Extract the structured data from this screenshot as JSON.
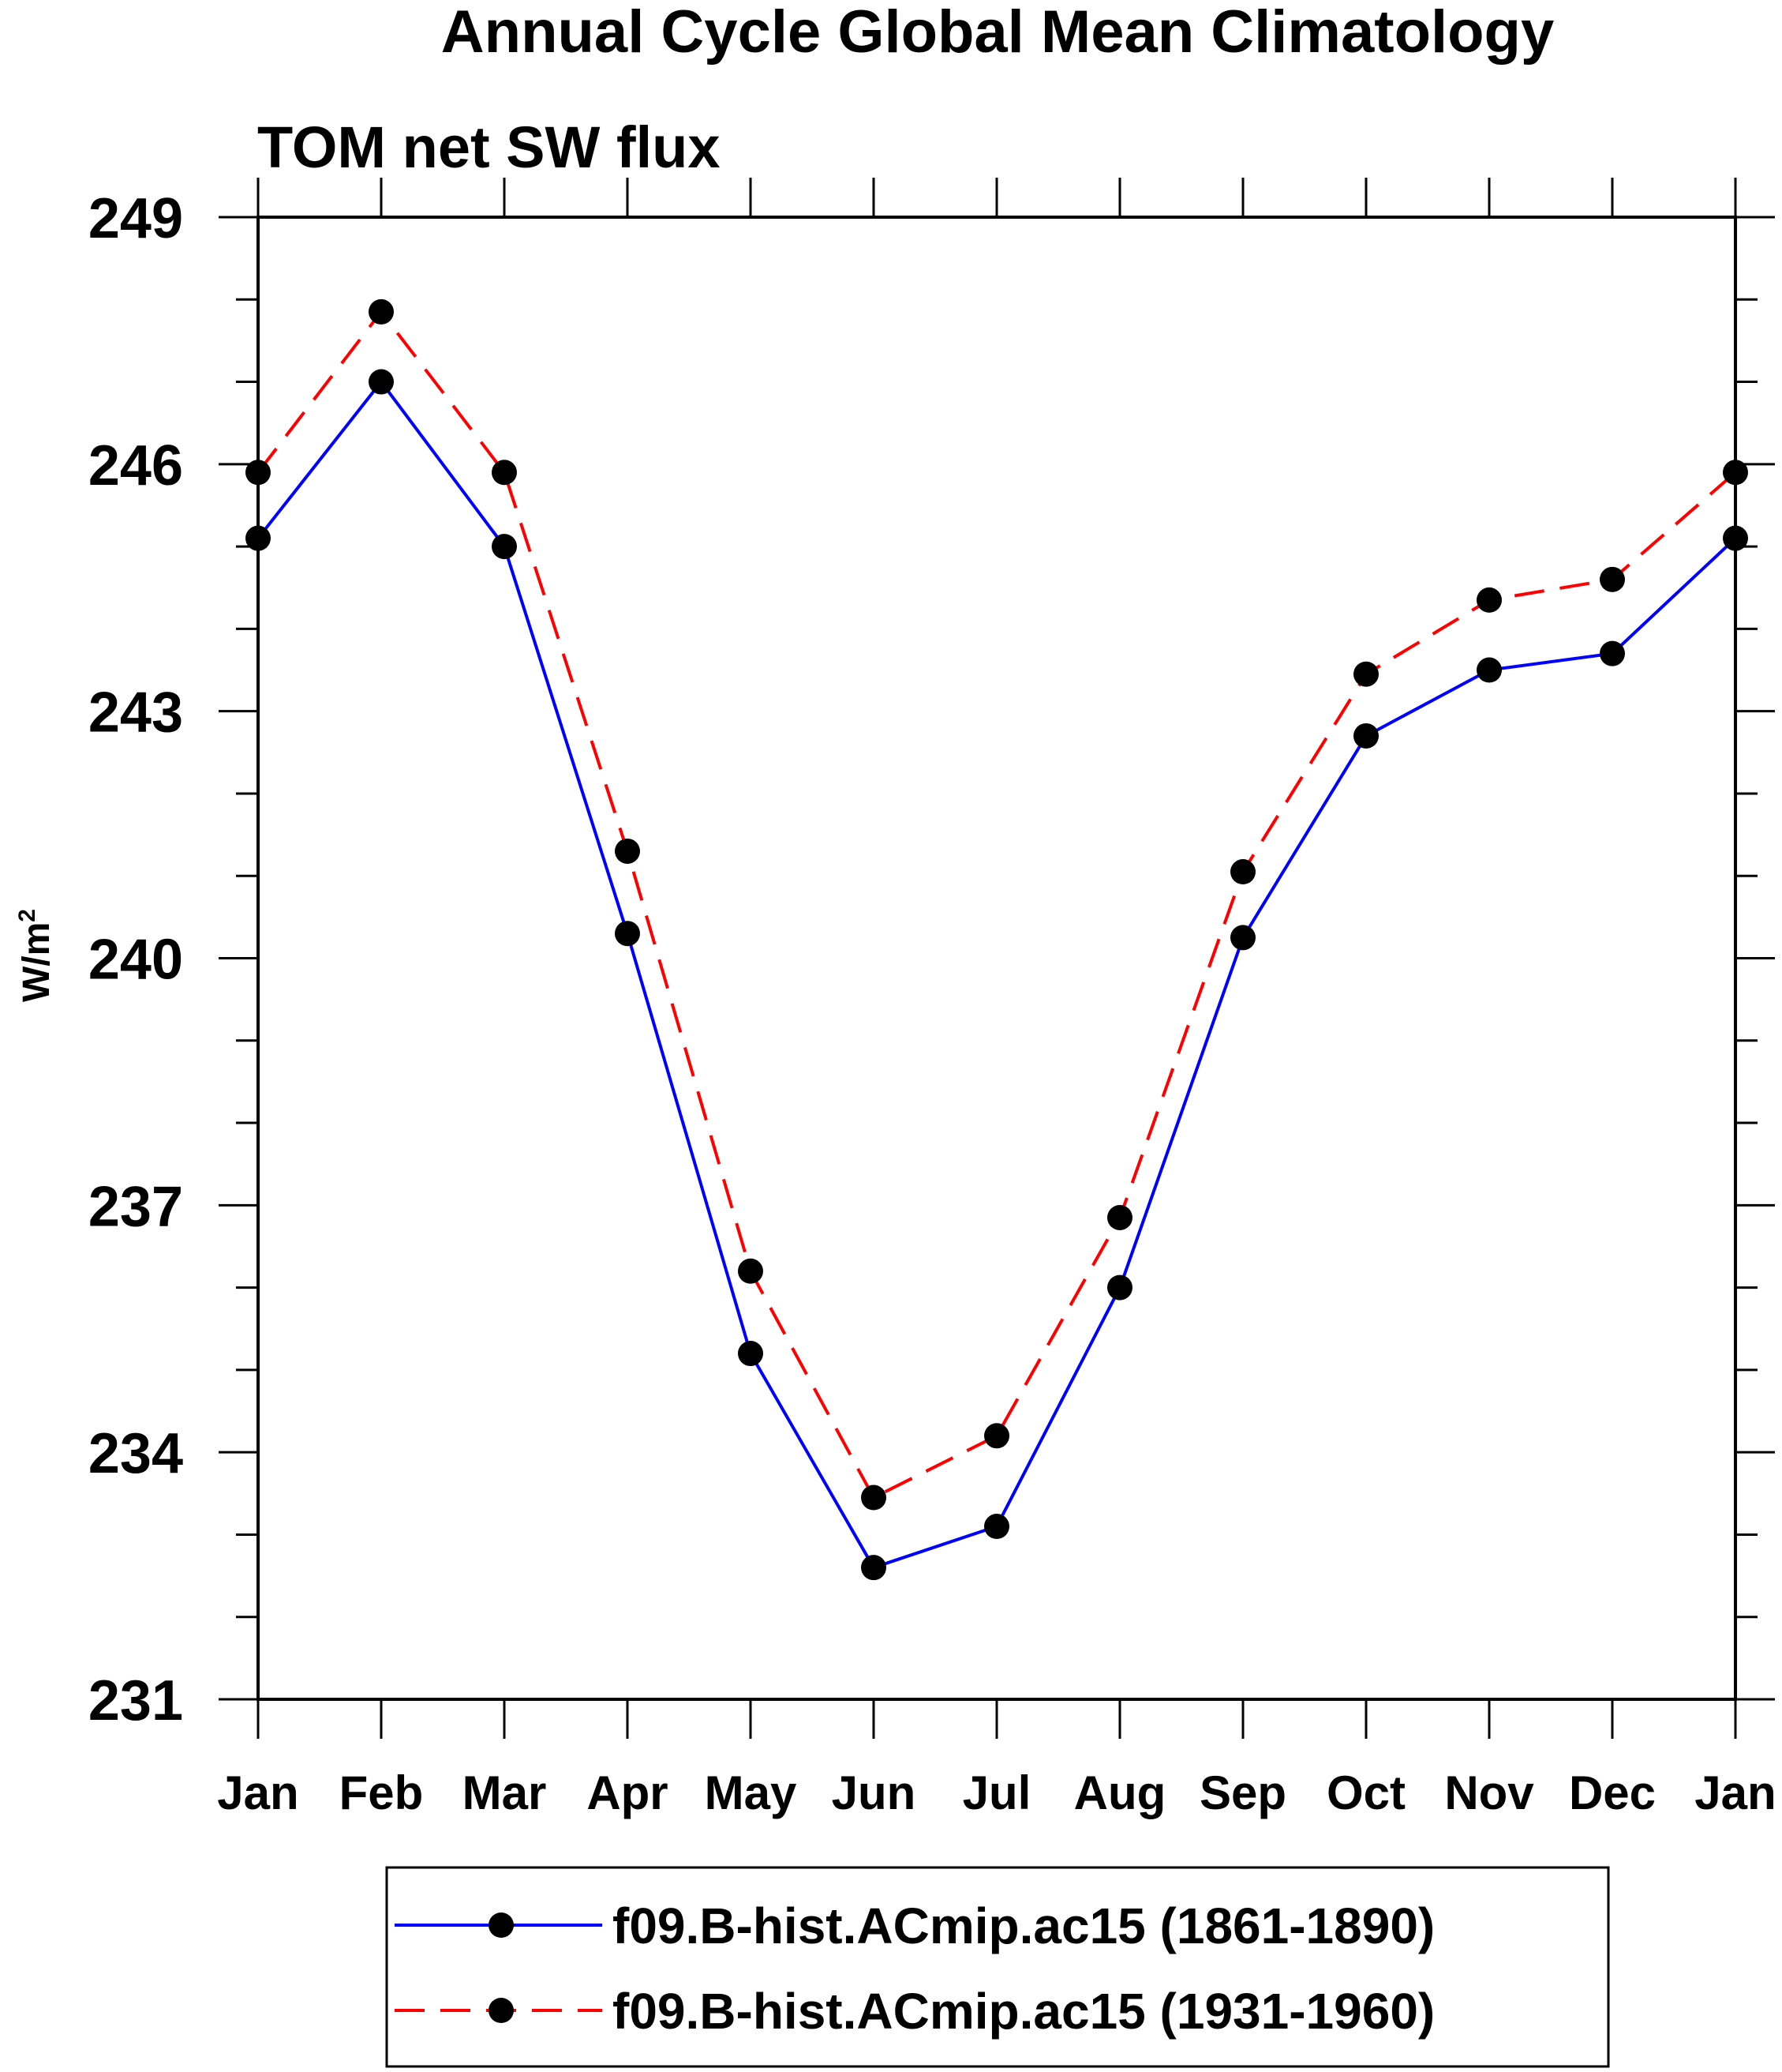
{
  "chart_data": {
    "type": "line",
    "title": "Annual Cycle Global Mean Climatology",
    "subtitle": "TOM net SW flux",
    "ylabel": "W/m",
    "ylabel_superscript": "2",
    "xlabel": "",
    "categories": [
      "Jan",
      "Feb",
      "Mar",
      "Apr",
      "May",
      "Jun",
      "Jul",
      "Aug",
      "Sep",
      "Oct",
      "Nov",
      "Dec",
      "Jan"
    ],
    "ylim": [
      231,
      249
    ],
    "yticks": [
      231,
      234,
      237,
      240,
      243,
      246,
      249
    ],
    "yticklabels": [
      "231",
      "234",
      "237",
      "240",
      "243",
      "246",
      "249"
    ],
    "grid": false,
    "legend_position": "bottom",
    "series": [
      {
        "name": "f09.B-hist.ACmip.ac15 (1861-1890)",
        "color": "#0000ff",
        "dash": "solid",
        "marker": "filled-circle",
        "values": [
          245.1,
          247.0,
          245.0,
          240.3,
          235.2,
          232.6,
          233.1,
          236.0,
          240.25,
          242.7,
          243.5,
          243.7,
          245.1
        ]
      },
      {
        "name": "f09.B-hist.ACmip.ac15 (1931-1960)",
        "color": "#ff0000",
        "dash": "dashed",
        "marker": "filled-circle",
        "values": [
          245.9,
          247.85,
          245.9,
          241.3,
          236.2,
          233.45,
          234.2,
          236.85,
          241.05,
          243.45,
          244.35,
          244.6,
          245.9
        ]
      }
    ]
  }
}
